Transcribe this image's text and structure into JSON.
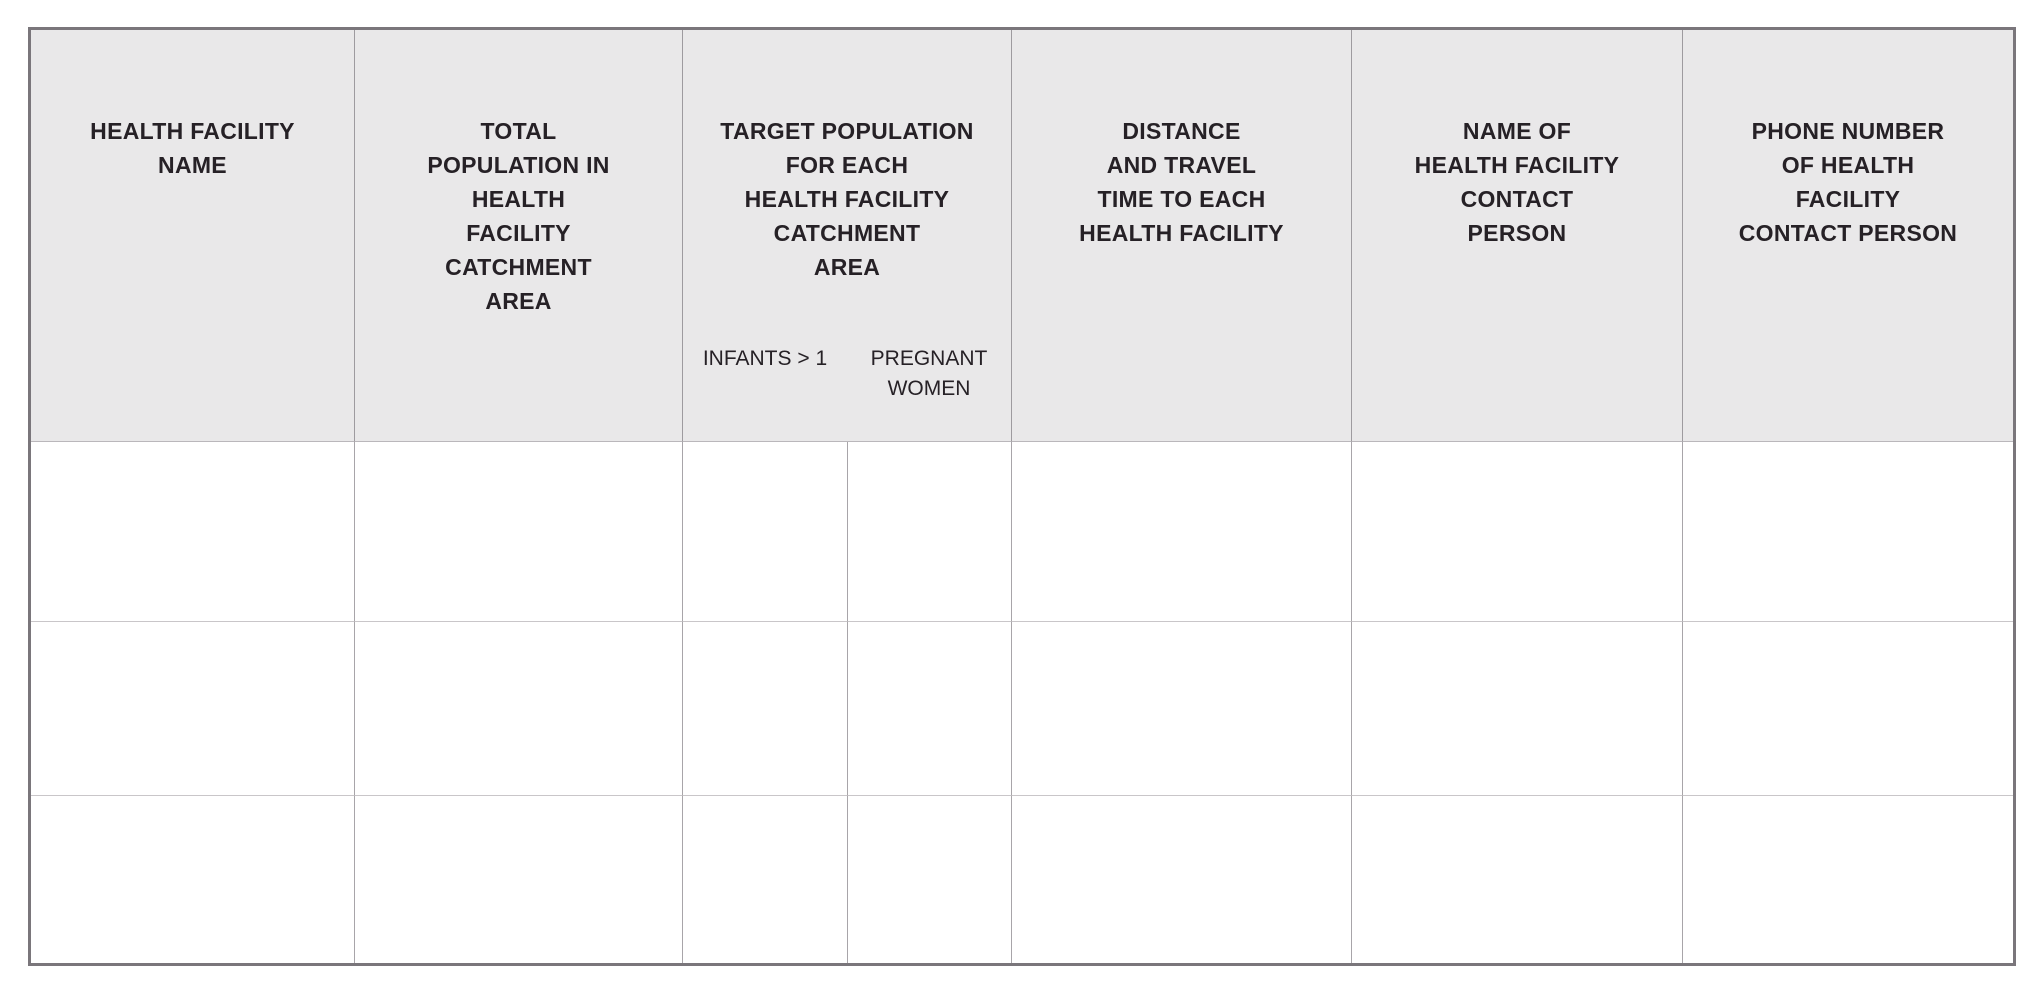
{
  "table": {
    "title": "health-facility-microplanning-table",
    "columns": [
      {
        "label": "HEALTH FACILITY\nNAME"
      },
      {
        "label": "TOTAL\nPOPULATION IN\nHEALTH\nFACILITY\nCATCHMENT\nAREA"
      },
      {
        "label": "TARGET POPULATION\nFOR EACH\nHEALTH FACILITY\nCATCHMENT\nAREA",
        "subcolumns": [
          {
            "label": "INFANTS > 1"
          },
          {
            "label": "PREGNANT\nWOMEN"
          }
        ]
      },
      {
        "label": "DISTANCE\nAND TRAVEL\nTIME TO EACH\nHEALTH FACILITY"
      },
      {
        "label": "NAME OF\nHEALTH FACILITY\nCONTACT\nPERSON"
      },
      {
        "label": "PHONE NUMBER\nOF HEALTH\nFACILITY\nCONTACT PERSON"
      }
    ],
    "rows": [
      [
        "",
        "",
        "",
        "",
        "",
        "",
        ""
      ],
      [
        "",
        "",
        "",
        "",
        "",
        "",
        ""
      ],
      [
        "",
        "",
        "",
        "",
        "",
        "",
        ""
      ]
    ],
    "colors": {
      "page_bg": "#ffffff",
      "header_bg": "#e9e8e9",
      "outer_border": "#7a767b",
      "vertical_line": "#a8a5a9",
      "horizontal_line": "#c9c6c9",
      "text": "#262126"
    }
  }
}
